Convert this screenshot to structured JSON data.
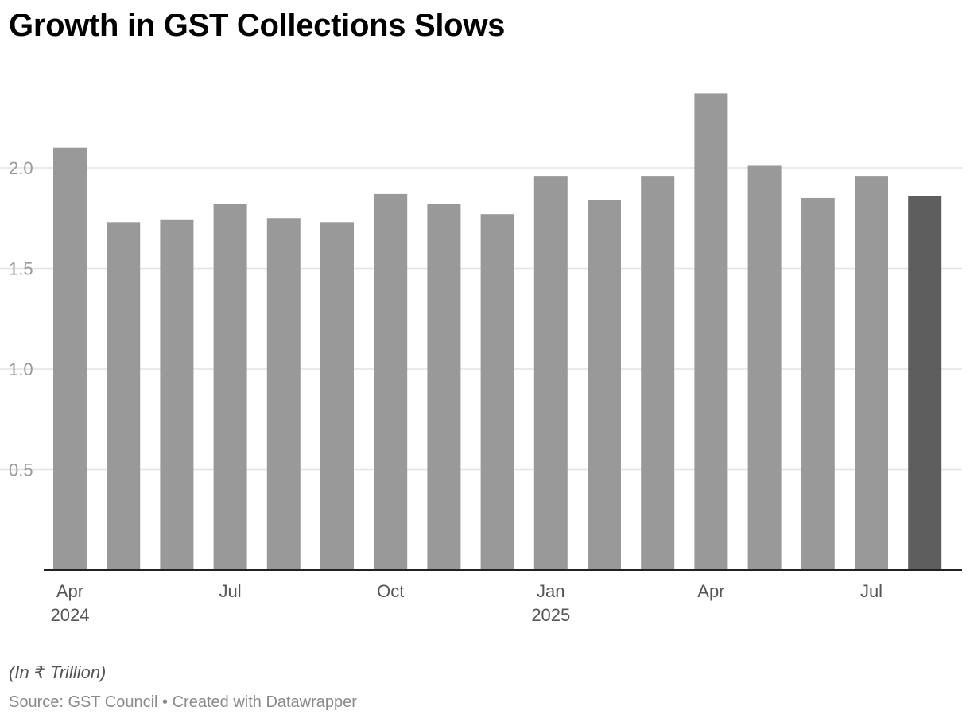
{
  "title": "Growth in GST Collections Slows",
  "note": "(In ₹ Trillion)",
  "source": "Source: GST Council • Created with Datawrapper",
  "colors": {
    "bar": "#999999",
    "highlight": "#5e5e5e",
    "grid": "#e3e3e3",
    "axis": "#222222",
    "tick_label": "#9a9a9a",
    "x_label": "#555555"
  },
  "chart_data": {
    "type": "bar",
    "title": "Growth in GST Collections Slows",
    "xlabel": "",
    "ylabel": "",
    "unit": "(In ₹ Trillion)",
    "ylim": [
      0,
      2.4
    ],
    "yticks": [
      0.5,
      1.0,
      1.5,
      2.0
    ],
    "ytick_labels": [
      "0.5",
      "1.0",
      "1.5",
      "2.0"
    ],
    "grid": true,
    "categories": [
      "Apr 2024",
      "May 2024",
      "Jun 2024",
      "Jul 2024",
      "Aug 2024",
      "Sep 2024",
      "Oct 2024",
      "Nov 2024",
      "Dec 2024",
      "Jan 2025",
      "Feb 2025",
      "Mar 2025",
      "Apr 2025",
      "May 2025",
      "Jun 2025",
      "Jul 2025",
      "Aug 2025"
    ],
    "values": [
      2.1,
      1.73,
      1.74,
      1.82,
      1.75,
      1.73,
      1.87,
      1.82,
      1.77,
      1.96,
      1.84,
      1.96,
      2.37,
      2.01,
      1.85,
      1.96,
      1.86
    ],
    "highlight_index": 16,
    "x_tick_labels": [
      {
        "index": 0,
        "month": "Apr",
        "year": "2024"
      },
      {
        "index": 3,
        "month": "Jul",
        "year": ""
      },
      {
        "index": 6,
        "month": "Oct",
        "year": ""
      },
      {
        "index": 9,
        "month": "Jan",
        "year": "2025"
      },
      {
        "index": 12,
        "month": "Apr",
        "year": ""
      },
      {
        "index": 15,
        "month": "Jul",
        "year": ""
      }
    ]
  }
}
